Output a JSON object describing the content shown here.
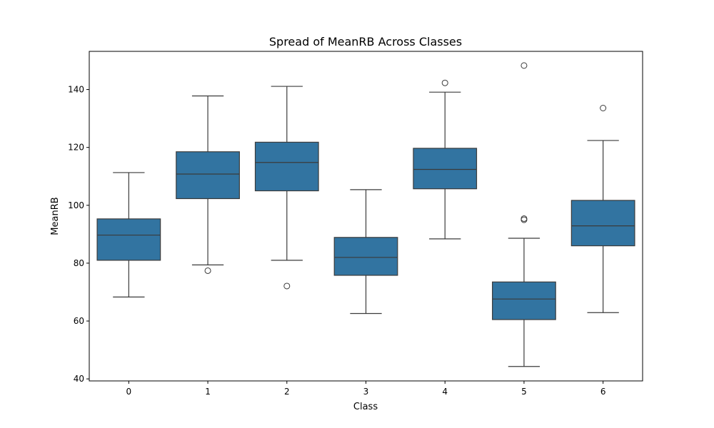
{
  "chart_data": {
    "type": "box",
    "title": "Spread of MeanRB Across Classes",
    "xlabel": "Class",
    "ylabel": "MeanRB",
    "categories": [
      "0",
      "1",
      "2",
      "3",
      "4",
      "5",
      "6"
    ],
    "ylim": [
      39.3,
      153.2
    ],
    "yticks": [
      40,
      60,
      80,
      100,
      120,
      140
    ],
    "grid": false,
    "legend": "none",
    "colors": {
      "box_fill": "#3274a1",
      "line": "#3b3b3b",
      "axis": "#000000",
      "flier": "#3b3b3b"
    },
    "boxes": [
      {
        "category": "0",
        "whisker_low": 68.3,
        "q1": 81.0,
        "median": 89.7,
        "q3": 95.3,
        "whisker_high": 111.3,
        "fliers": []
      },
      {
        "category": "1",
        "whisker_low": 79.4,
        "q1": 102.3,
        "median": 110.8,
        "q3": 118.5,
        "whisker_high": 137.8,
        "fliers": [
          77.4
        ]
      },
      {
        "category": "2",
        "whisker_low": 81.0,
        "q1": 105.0,
        "median": 114.8,
        "q3": 121.8,
        "whisker_high": 141.1,
        "fliers": [
          72.1
        ]
      },
      {
        "category": "3",
        "whisker_low": 62.6,
        "q1": 75.8,
        "median": 82.0,
        "q3": 88.9,
        "whisker_high": 105.4,
        "fliers": []
      },
      {
        "category": "4",
        "whisker_low": 88.4,
        "q1": 105.7,
        "median": 112.4,
        "q3": 119.7,
        "whisker_high": 139.1,
        "fliers": [
          142.3
        ]
      },
      {
        "category": "5",
        "whisker_low": 44.3,
        "q1": 60.5,
        "median": 67.6,
        "q3": 73.5,
        "whisker_high": 88.6,
        "fliers": [
          95.0,
          95.4,
          148.3
        ]
      },
      {
        "category": "6",
        "whisker_low": 62.9,
        "q1": 86.0,
        "median": 92.9,
        "q3": 101.7,
        "whisker_high": 122.4,
        "fliers": [
          133.6
        ]
      }
    ]
  }
}
